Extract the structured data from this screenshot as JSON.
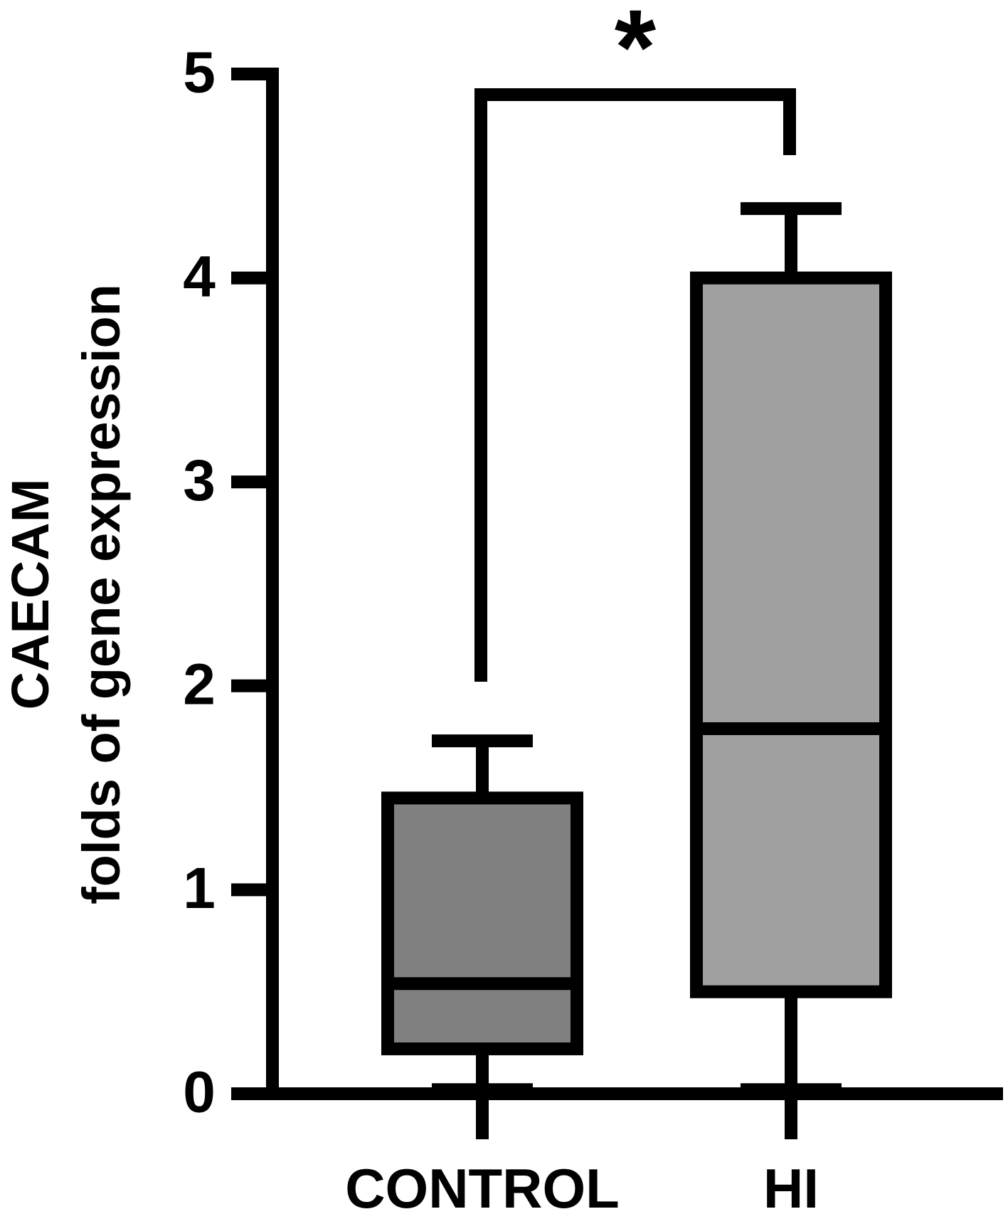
{
  "chart_data": {
    "type": "box",
    "ylabel_line1": "CAECAM",
    "ylabel_line2": "folds of gene expression",
    "ylim": [
      0,
      5
    ],
    "yticks": [
      "0",
      "1",
      "2",
      "3",
      "4",
      "5"
    ],
    "grid": false,
    "categories": [
      "CONTROL",
      "HI"
    ],
    "boxes": [
      {
        "category": "CONTROL",
        "min": 0.02,
        "q1": 0.22,
        "median": 0.54,
        "q3": 1.45,
        "max": 1.73,
        "fill": "#808080"
      },
      {
        "category": "HI",
        "min": 0.02,
        "q1": 0.5,
        "median": 1.79,
        "q3": 4.0,
        "max": 4.34,
        "fill": "#a0a0a0"
      }
    ],
    "significance": {
      "label": "*",
      "between": [
        "CONTROL",
        "HI"
      ]
    }
  }
}
